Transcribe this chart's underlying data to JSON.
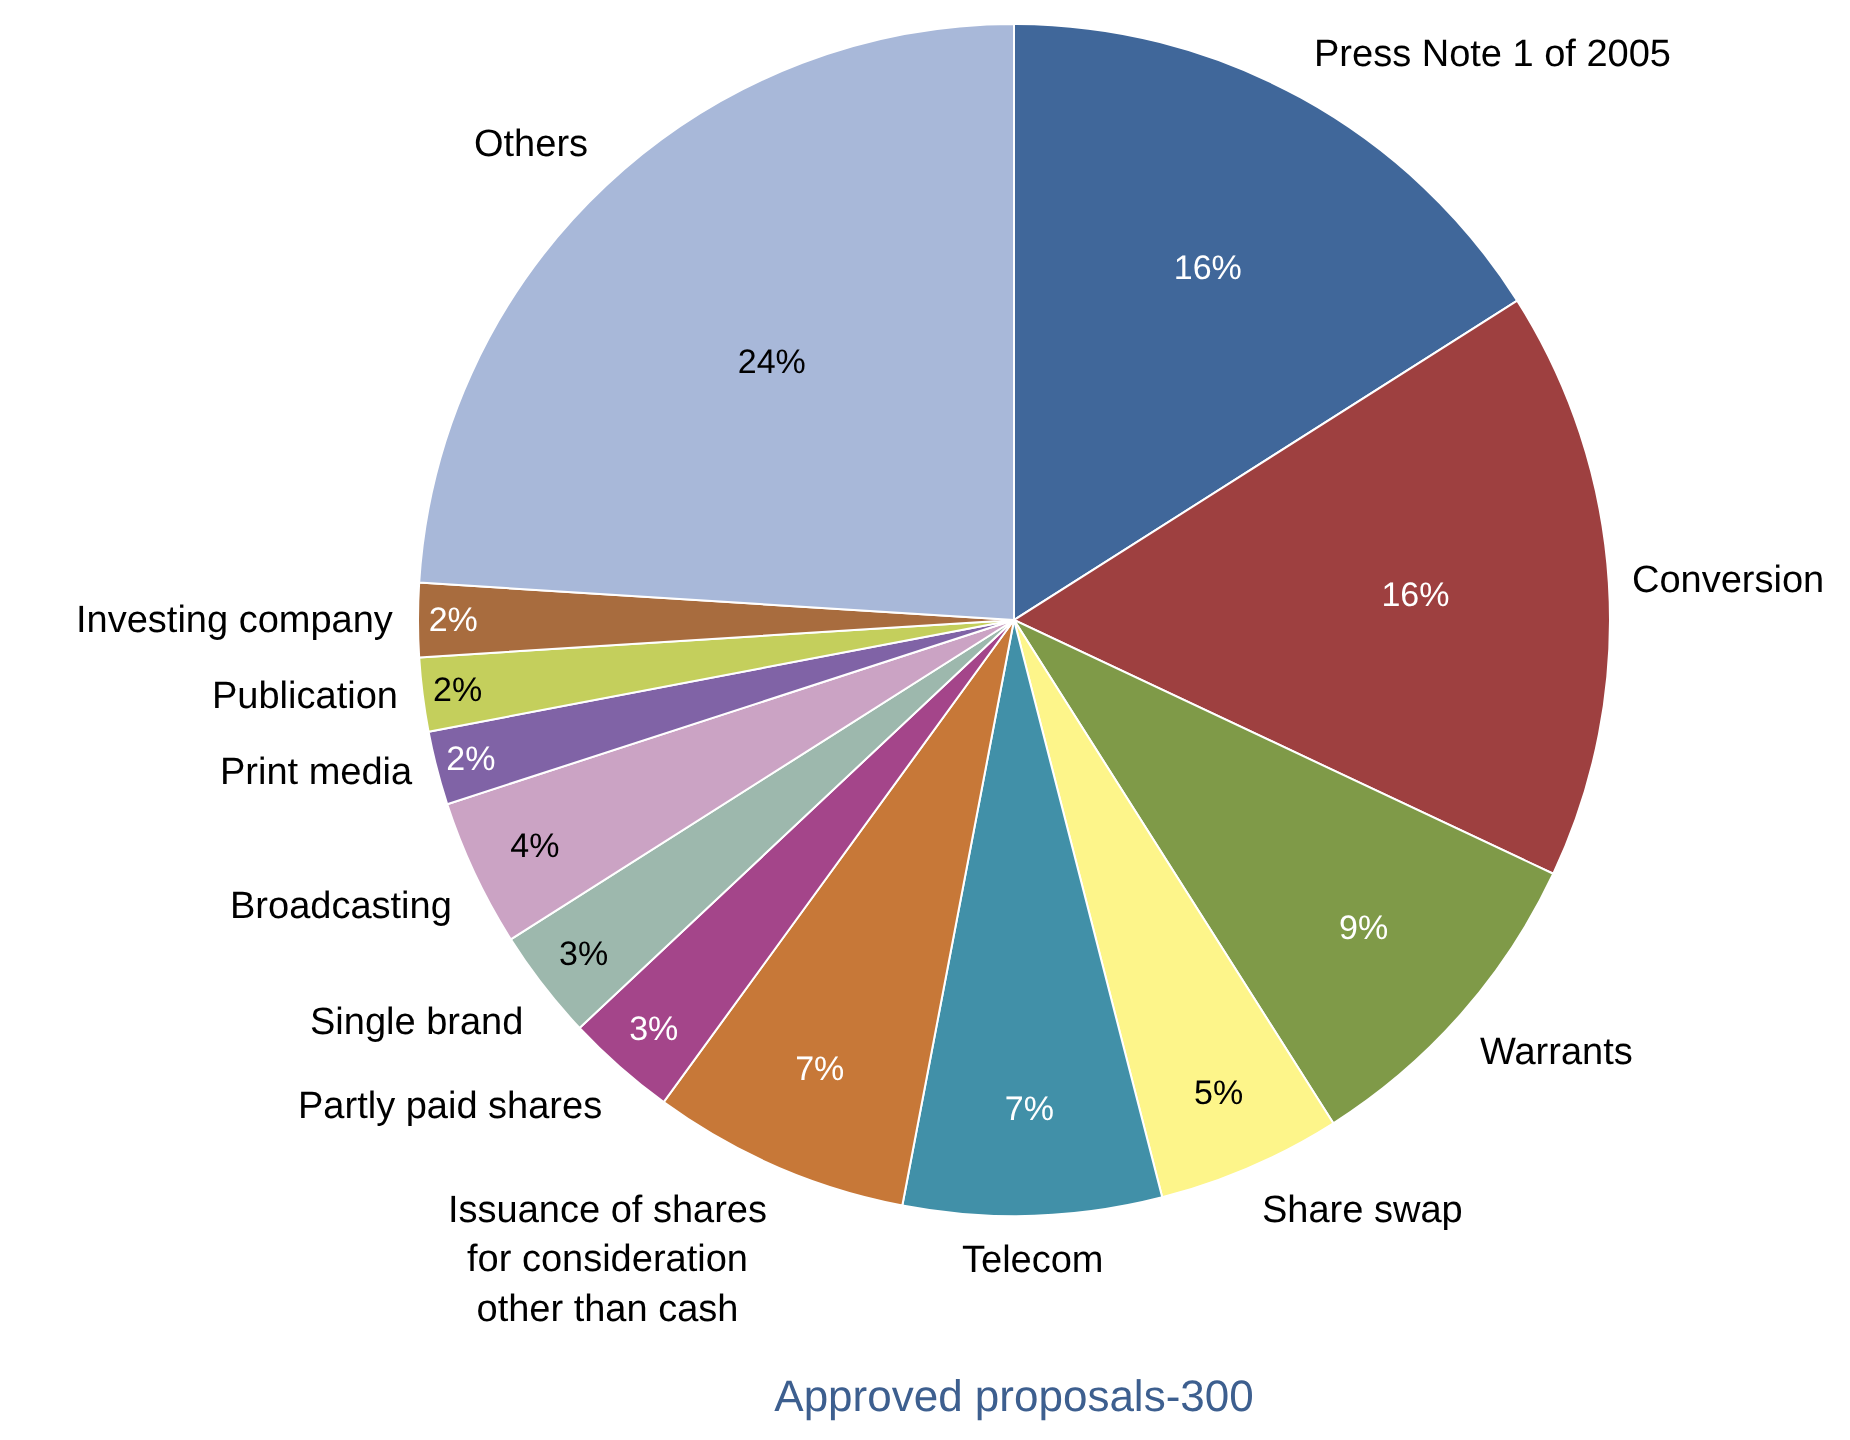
{
  "chart_data": {
    "type": "pie",
    "title": "Approved proposals-300",
    "categories": [
      "Press Note 1 of 2005",
      "Conversion",
      "Warrants",
      "Share swap",
      "Telecom",
      "Issuance of shares\nfor consideration\nother than cash",
      "Partly paid shares",
      "Single brand",
      "Broadcasting",
      "Print media",
      "Publication",
      "Investing company",
      "Others"
    ],
    "values": [
      16,
      16,
      9,
      5,
      7,
      7,
      3,
      3,
      4,
      2,
      2,
      2,
      24
    ],
    "value_labels": [
      "16%",
      "16%",
      "9%",
      "5%",
      "7%",
      "7%",
      "3%",
      "3%",
      "4%",
      "2%",
      "2%",
      "2%",
      "24%"
    ],
    "colors": [
      "#40679a",
      "#9e4040",
      "#7f9a48",
      "#fdf58a",
      "#4190a8",
      "#c77838",
      "#a4458a",
      "#9db8ad",
      "#cba3c4",
      "#8063a6",
      "#c4cf5c",
      "#a86c3e",
      "#a8b8d9"
    ],
    "legend": false
  }
}
